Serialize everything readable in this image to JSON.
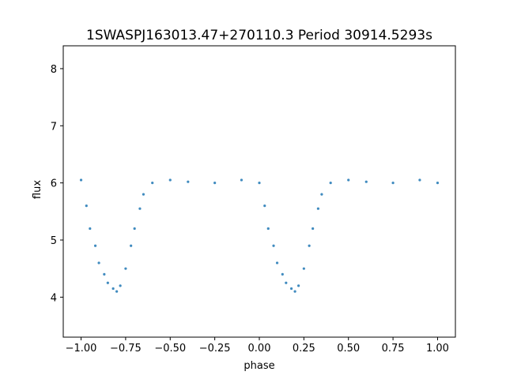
{
  "chart_data": {
    "type": "scatter",
    "title": "1SWASPJ163013.47+270110.3 Period 30914.5293s",
    "xlabel": "phase",
    "ylabel": "flux",
    "xlim": [
      -1.1,
      1.1
    ],
    "ylim": [
      3.3,
      8.4
    ],
    "x_ticks": [
      -1.0,
      -0.75,
      -0.5,
      -0.25,
      0.0,
      0.25,
      0.5,
      0.75,
      1.0
    ],
    "x_tick_labels": [
      "−1.00",
      "−0.75",
      "−0.50",
      "−0.25",
      "0.00",
      "0.25",
      "0.50",
      "0.75",
      "1.00"
    ],
    "y_ticks": [
      4,
      5,
      6,
      7,
      8
    ],
    "y_tick_labels": [
      "4",
      "5",
      "6",
      "7",
      "8"
    ],
    "grid": false,
    "legend": "none",
    "marker_color": "#1f77b4",
    "series": [
      {
        "values": [
          [
            -1.0,
            6.05
          ],
          [
            -0.97,
            5.6
          ],
          [
            -0.95,
            5.2
          ],
          [
            -0.92,
            4.9
          ],
          [
            -0.9,
            4.6
          ],
          [
            -0.87,
            4.4
          ],
          [
            -0.85,
            4.25
          ],
          [
            -0.82,
            4.15
          ],
          [
            -0.8,
            4.1
          ],
          [
            -0.78,
            4.2
          ],
          [
            -0.75,
            4.5
          ],
          [
            -0.72,
            4.9
          ],
          [
            -0.7,
            5.2
          ],
          [
            -0.67,
            5.55
          ],
          [
            -0.65,
            5.8
          ],
          [
            -0.6,
            6.0
          ],
          [
            -0.5,
            6.05
          ],
          [
            -0.4,
            6.02
          ],
          [
            -0.25,
            6.0
          ],
          [
            -0.1,
            6.05
          ],
          [
            0.0,
            6.0
          ],
          [
            0.03,
            5.6
          ],
          [
            0.05,
            5.2
          ],
          [
            0.08,
            4.9
          ],
          [
            0.1,
            4.6
          ],
          [
            0.13,
            4.4
          ],
          [
            0.15,
            4.25
          ],
          [
            0.18,
            4.15
          ],
          [
            0.2,
            4.1
          ],
          [
            0.22,
            4.2
          ],
          [
            0.25,
            4.5
          ],
          [
            0.28,
            4.9
          ],
          [
            0.3,
            5.2
          ],
          [
            0.33,
            5.55
          ],
          [
            0.35,
            5.8
          ],
          [
            0.4,
            6.0
          ],
          [
            0.5,
            6.05
          ],
          [
            0.6,
            6.02
          ],
          [
            0.75,
            6.0
          ],
          [
            0.9,
            6.05
          ],
          [
            1.0,
            6.0
          ]
        ]
      }
    ]
  }
}
